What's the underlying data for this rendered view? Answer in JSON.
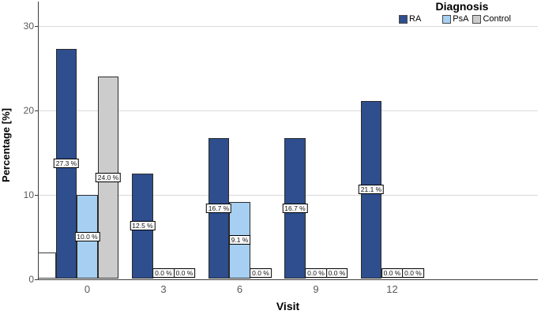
{
  "chart_data": {
    "type": "bar",
    "legend_title": "Diagnosis",
    "legend_position": "top-right",
    "xlabel": "Visit",
    "ylabel": "Percentage [%]",
    "categories": [
      "0",
      "3",
      "6",
      "9",
      "12"
    ],
    "series": [
      {
        "name": "RA",
        "color": "#2e4e8e",
        "values": [
          27.3,
          12.5,
          16.7,
          16.7,
          21.1
        ],
        "labels": [
          "27.3 %",
          "12.5 %",
          "16.7 %",
          "16.7 %",
          "21.1 %"
        ]
      },
      {
        "name": "PsA",
        "color": "#a6cff2",
        "values": [
          10.0,
          0.0,
          9.1,
          0.0,
          0.0
        ],
        "labels": [
          "10.0 %",
          "0.0 %",
          "9.1 %",
          "0.0 %",
          "0.0 %"
        ]
      },
      {
        "name": "Control",
        "color": "#cccccc",
        "values": [
          24.0,
          0.0,
          0.0,
          0.0,
          0.0
        ],
        "labels": [
          "24.0 %",
          "0.0 %",
          "0.0 %",
          "0.0 %",
          "0.0 %"
        ]
      }
    ],
    "yticks": [
      0,
      10,
      20,
      30
    ],
    "yticklabels": [
      "0",
      "10",
      "20",
      "30"
    ],
    "ylim": [
      0,
      33
    ],
    "grid": "horizontal",
    "bar_border_color": "#2b2b2b",
    "gridline_color": "#d9d9d9",
    "label_box": {
      "bg": "#ffffff",
      "border": "#000000"
    },
    "artifact_bar": {
      "note": "small unlabeled white rectangle between y-axis and first RA bar",
      "top_pct": 3.1
    }
  }
}
